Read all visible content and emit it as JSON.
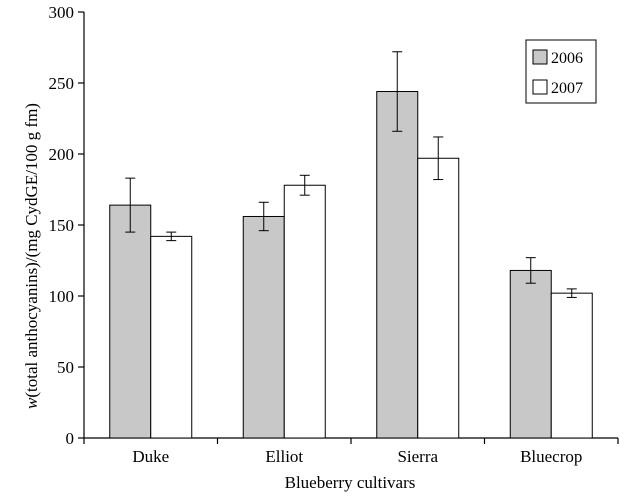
{
  "chart_data": {
    "type": "bar",
    "categories": [
      "Duke",
      "Elliot",
      "Sierra",
      "Bluecrop"
    ],
    "series": [
      {
        "name": "2006",
        "color": "#c8c8c8",
        "values": [
          164,
          156,
          244,
          118
        ],
        "errors": [
          19,
          10,
          28,
          9
        ]
      },
      {
        "name": "2007",
        "color": "#ffffff",
        "values": [
          142,
          178,
          197,
          102
        ],
        "errors": [
          3,
          7,
          15,
          3
        ]
      }
    ],
    "xlabel": "Blueberry cultivars",
    "ylabel_italic": "w",
    "ylabel_rest": "(total anthocyanins)/(mg CydGE/100 g fm)",
    "ylim": [
      0,
      300
    ],
    "yticks": [
      0,
      50,
      100,
      150,
      200,
      250,
      300
    ],
    "grid": false,
    "legend_position": "top-right"
  }
}
